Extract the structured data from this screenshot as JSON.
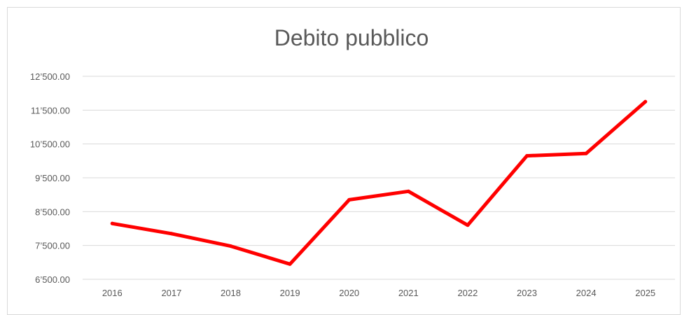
{
  "chart_data": {
    "type": "line",
    "title": "Debito pubblico",
    "xlabel": "",
    "ylabel": "",
    "categories": [
      "2016",
      "2017",
      "2018",
      "2019",
      "2020",
      "2021",
      "2022",
      "2023",
      "2024",
      "2025"
    ],
    "series": [
      {
        "values": [
          8150,
          7850,
          7480,
          6950,
          8850,
          9100,
          8100,
          10150,
          10220,
          11750
        ]
      }
    ],
    "ylim": [
      6500,
      12500
    ],
    "yticks": [
      6500,
      7500,
      8500,
      9500,
      10500,
      11500,
      12500
    ],
    "ytick_labels": [
      "6’500.00",
      "7’500.00",
      "8’500.00",
      "9’500.00",
      "10’500.00",
      "11’500.00",
      "12’500.00"
    ],
    "grid": true,
    "legend": "none",
    "colors": {
      "line": "#ff0000",
      "grid": "#d9d9d9",
      "text": "#595959"
    }
  }
}
